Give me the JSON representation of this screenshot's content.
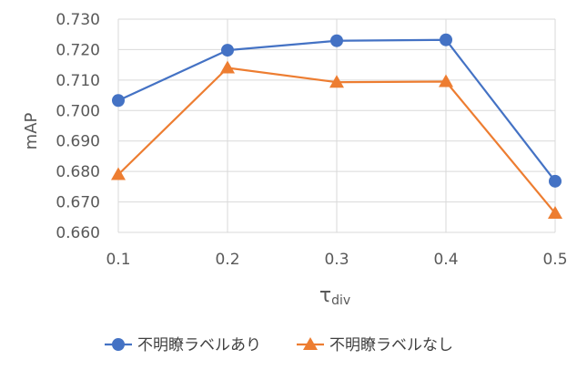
{
  "chart_data": {
    "type": "line",
    "title": "",
    "xlabel": "τdiv",
    "xlabel_main": "τ",
    "xlabel_sub": "div",
    "ylabel": "mAP",
    "categories": [
      "0.1",
      "0.2",
      "0.3",
      "0.4",
      "0.5"
    ],
    "yticks": [
      "0.660",
      "0.670",
      "0.680",
      "0.690",
      "0.700",
      "0.710",
      "0.720",
      "0.730"
    ],
    "ylim": [
      0.66,
      0.73
    ],
    "grid": true,
    "legend_position": "bottom",
    "series": [
      {
        "name": "不明瞭ラベルあり",
        "marker": "circle",
        "color": "#4472C4",
        "values": [
          0.7033,
          0.7198,
          0.7229,
          0.7232,
          0.6768
        ]
      },
      {
        "name": "不明瞭ラベルなし",
        "marker": "triangle",
        "color": "#ED7D31",
        "values": [
          0.679,
          0.714,
          0.7093,
          0.7095,
          0.6663
        ]
      }
    ]
  }
}
